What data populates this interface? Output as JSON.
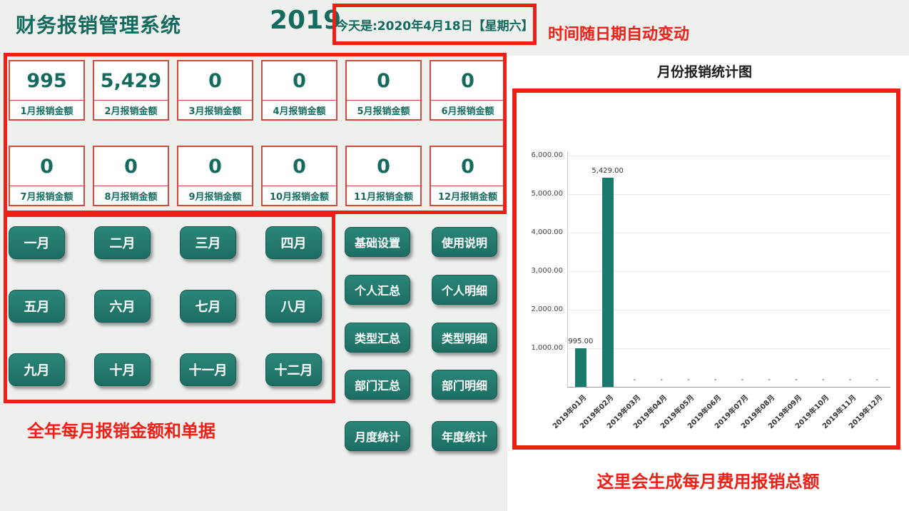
{
  "header": {
    "title": "财务报销管理系统",
    "year": "2019",
    "date_text": "今天是:2020年4月18日【星期六】"
  },
  "annotations": {
    "date_note": "时间随日期自动变动",
    "months_note": "全年每月报销金额和单据",
    "chart_note": "这里会生成每月费用报销总额"
  },
  "stats": {
    "cards": [
      {
        "value": "995",
        "label": "1月报销金额"
      },
      {
        "value": "5,429",
        "label": "2月报销金额"
      },
      {
        "value": "0",
        "label": "3月报销金额"
      },
      {
        "value": "0",
        "label": "4月报销金额"
      },
      {
        "value": "0",
        "label": "5月报销金额"
      },
      {
        "value": "0",
        "label": "6月报销金额"
      },
      {
        "value": "0",
        "label": "7月报销金额"
      },
      {
        "value": "0",
        "label": "8月报销金额"
      },
      {
        "value": "0",
        "label": "9月报销金额"
      },
      {
        "value": "0",
        "label": "10月报销金额"
      },
      {
        "value": "0",
        "label": "11月报销金额"
      },
      {
        "value": "0",
        "label": "12月报销金额"
      }
    ]
  },
  "month_buttons": [
    {
      "label": "一月",
      "name": "month-button-jan"
    },
    {
      "label": "二月",
      "name": "month-button-feb"
    },
    {
      "label": "三月",
      "name": "month-button-mar"
    },
    {
      "label": "四月",
      "name": "month-button-apr"
    },
    {
      "label": "五月",
      "name": "month-button-may"
    },
    {
      "label": "六月",
      "name": "month-button-jun"
    },
    {
      "label": "七月",
      "name": "month-button-jul"
    },
    {
      "label": "八月",
      "name": "month-button-aug"
    },
    {
      "label": "九月",
      "name": "month-button-sep"
    },
    {
      "label": "十月",
      "name": "month-button-oct"
    },
    {
      "label": "十一月",
      "name": "month-button-nov"
    },
    {
      "label": "十二月",
      "name": "month-button-dec"
    }
  ],
  "function_buttons": {
    "col1": [
      {
        "label": "基础设置",
        "name": "basic-settings-button"
      },
      {
        "label": "个人汇总",
        "name": "personal-summary-button"
      },
      {
        "label": "类型汇总",
        "name": "type-summary-button"
      },
      {
        "label": "部门汇总",
        "name": "department-summary-button"
      },
      {
        "label": "月度统计",
        "name": "monthly-statistics-button"
      }
    ],
    "col2": [
      {
        "label": "使用说明",
        "name": "usage-instructions-button"
      },
      {
        "label": "个人明细",
        "name": "personal-detail-button"
      },
      {
        "label": "类型明细",
        "name": "type-detail-button"
      },
      {
        "label": "部门明细",
        "name": "department-detail-button"
      },
      {
        "label": "年度统计",
        "name": "annual-statistics-button"
      }
    ]
  },
  "chart_data": {
    "type": "bar",
    "title": "月份报销统计图",
    "categories": [
      "2019年01月",
      "2019年02月",
      "2019年03月",
      "2019年04月",
      "2019年05月",
      "2019年06月",
      "2019年07月",
      "2019年08月",
      "2019年09月",
      "2019年10月",
      "2019年11月",
      "2019年12月"
    ],
    "values": [
      995,
      5429,
      0,
      0,
      0,
      0,
      0,
      0,
      0,
      0,
      0,
      0
    ],
    "value_labels": [
      "995.00",
      "5,429.00",
      "-",
      "-",
      "-",
      "-",
      "-",
      "-",
      "-",
      "-",
      "-",
      "-"
    ],
    "y_ticks": [
      {
        "value": 1000,
        "label": "1,000.00"
      },
      {
        "value": 2000,
        "label": "2,000.00"
      },
      {
        "value": 3000,
        "label": "3,000.00"
      },
      {
        "value": 4000,
        "label": "4,000.00"
      },
      {
        "value": 5000,
        "label": "5,000.00"
      },
      {
        "value": 6000,
        "label": "6,000.00"
      }
    ],
    "ylim": [
      0,
      6000
    ],
    "grid": true,
    "legend": "none",
    "bar_color": "#1a7a6e"
  },
  "colors": {
    "teal_text": "#156a5e",
    "teal_button": "#23796c",
    "annotation_red": "#ed1f16",
    "card_border": "#cf4a41",
    "bar_teal": "#1a7a6e"
  }
}
